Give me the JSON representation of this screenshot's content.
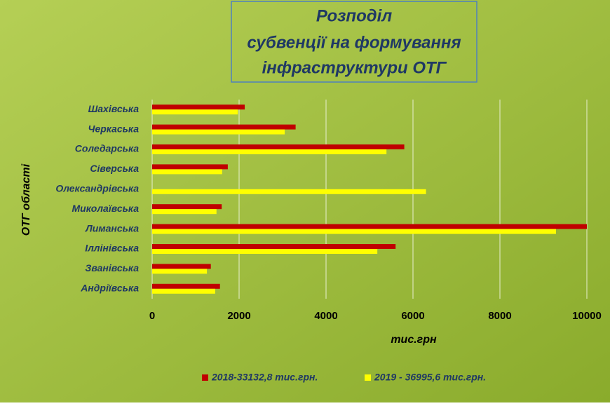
{
  "chart_data": {
    "type": "hbar",
    "title": [
      "Розподіл",
      "субвенції на формування",
      "інфраструктури ОТГ"
    ],
    "y_label": "ОТГ області",
    "x_label": "тис.грн",
    "categories": [
      "Шахівська",
      "Черкаська",
      "Соледарська",
      "Сіверська",
      "Олександрівська",
      "Миколаївська",
      "Лиманська",
      "Іллінівська",
      "Званівська",
      "Андріївська"
    ],
    "series": [
      {
        "name": "2018-33132,8 тис.грн.",
        "color": "#c00000",
        "values": [
          2130,
          3300,
          5800,
          1740,
          null,
          1600,
          10000,
          5600,
          1350,
          1560
        ]
      },
      {
        "name": "2019 - 36995,6 тис.грн.",
        "color": "#ffff00",
        "values": [
          1970,
          3050,
          5390,
          1610,
          6300,
          1480,
          9290,
          5180,
          1260,
          1450
        ]
      }
    ],
    "xlim": [
      0,
      10000
    ],
    "xticks": [
      0,
      2000,
      4000,
      6000,
      8000,
      10000
    ],
    "grid": true
  }
}
